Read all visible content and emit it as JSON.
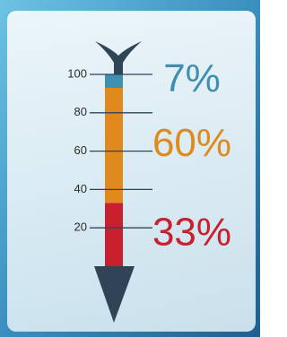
{
  "chart_data": {
    "type": "bar",
    "stacked": true,
    "categories": [
      null
    ],
    "series": [
      {
        "color": "#c8202e",
        "values": [
          33
        ],
        "value_labels": [
          "33%"
        ]
      },
      {
        "color": "#e08a1e",
        "values": [
          60
        ],
        "value_labels": [
          "60%"
        ]
      },
      {
        "color": "#3e8fb0",
        "values": [
          7
        ],
        "value_labels": [
          "7%"
        ]
      }
    ],
    "ylim": [
      0,
      100
    ],
    "yticks": [
      20,
      40,
      60,
      80,
      100
    ],
    "grid": true
  }
}
